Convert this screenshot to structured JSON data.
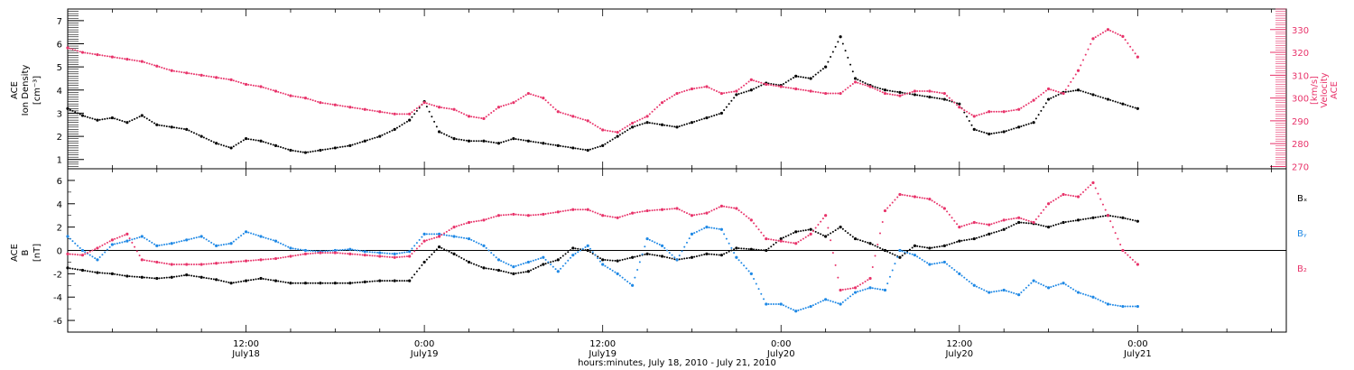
{
  "chart_data": [
    {
      "type": "scatter",
      "panel": "top",
      "ylabel_left": [
        "ACE",
        "Ion Density",
        "[cm⁻³]"
      ],
      "ylabel_right": [
        "ACE",
        "Velocity",
        "[km/s]"
      ],
      "ylim_left": [
        0.6,
        7.5
      ],
      "ylim_right": [
        269,
        339
      ],
      "yticks_left": [
        1,
        2,
        3,
        4,
        5,
        6,
        7
      ],
      "yticks_right": [
        270,
        280,
        290,
        300,
        310,
        320,
        330
      ],
      "x_range_hours": [
        0,
        82
      ],
      "colors": {
        "density": "#000000",
        "velocity": "#e8336a"
      },
      "series": [
        {
          "name": "Ion Density",
          "axis": "left",
          "color": "#000000",
          "x": [
            0,
            1,
            2,
            3,
            4,
            5,
            6,
            7,
            8,
            9,
            10,
            11,
            12,
            13,
            14,
            15,
            16,
            17,
            18,
            19,
            20,
            21,
            22,
            23,
            24,
            25,
            26,
            27,
            28,
            29,
            30,
            31,
            32,
            33,
            34,
            35,
            36,
            37,
            38,
            39,
            40,
            41,
            42,
            43,
            44,
            45,
            46,
            47,
            48,
            49,
            50,
            51,
            52,
            53,
            54,
            55,
            56,
            57,
            58,
            59,
            60,
            61,
            62,
            63,
            64,
            65,
            66,
            67,
            68,
            69,
            70,
            71,
            72
          ],
          "values": [
            3.2,
            2.9,
            2.7,
            2.8,
            2.6,
            2.9,
            2.5,
            2.4,
            2.3,
            2.0,
            1.7,
            1.5,
            1.9,
            1.8,
            1.6,
            1.4,
            1.3,
            1.4,
            1.5,
            1.6,
            1.8,
            2.0,
            2.3,
            2.7,
            3.5,
            2.2,
            1.9,
            1.8,
            1.8,
            1.7,
            1.9,
            1.8,
            1.7,
            1.6,
            1.5,
            1.4,
            1.6,
            2.0,
            2.4,
            2.6,
            2.5,
            2.4,
            2.6,
            2.8,
            3.0,
            3.8,
            4.0,
            4.3,
            4.2,
            4.6,
            4.5,
            5.0,
            6.3,
            4.5,
            4.2,
            4.0,
            3.9,
            3.8,
            3.7,
            3.6,
            3.4,
            2.3,
            2.1,
            2.2,
            2.4,
            2.6,
            3.6,
            3.9,
            4.0,
            3.8,
            3.6,
            3.4,
            3.2
          ]
        },
        {
          "name": "Velocity",
          "axis": "right",
          "color": "#e8336a",
          "x": [
            0,
            1,
            2,
            3,
            4,
            5,
            6,
            7,
            8,
            9,
            10,
            11,
            12,
            13,
            14,
            15,
            16,
            17,
            18,
            19,
            20,
            21,
            22,
            23,
            24,
            25,
            26,
            27,
            28,
            29,
            30,
            31,
            32,
            33,
            34,
            35,
            36,
            37,
            38,
            39,
            40,
            41,
            42,
            43,
            44,
            45,
            46,
            47,
            48,
            49,
            50,
            51,
            52,
            53,
            54,
            55,
            56,
            57,
            58,
            59,
            60,
            61,
            62,
            63,
            64,
            65,
            66,
            67,
            68,
            69,
            70,
            71,
            72
          ],
          "values": [
            322,
            320,
            319,
            318,
            317,
            316,
            314,
            312,
            311,
            310,
            309,
            308,
            306,
            305,
            303,
            301,
            300,
            298,
            297,
            296,
            295,
            294,
            293,
            293,
            298,
            296,
            295,
            292,
            291,
            296,
            298,
            302,
            300,
            294,
            292,
            290,
            286,
            285,
            289,
            292,
            298,
            302,
            304,
            305,
            302,
            303,
            308,
            306,
            305,
            304,
            303,
            302,
            302,
            307,
            305,
            302,
            301,
            303,
            303,
            302,
            296,
            292,
            294,
            294,
            295,
            299,
            304,
            302,
            312,
            326,
            330,
            327,
            318
          ]
        }
      ]
    },
    {
      "type": "scatter",
      "panel": "bottom",
      "ylabel_left": [
        "ACE",
        "B",
        "[nT]"
      ],
      "ylim": [
        -7,
        7
      ],
      "yticks": [
        -6,
        -4,
        -2,
        0,
        2,
        4,
        6
      ],
      "x_range_hours": [
        0,
        82
      ],
      "zero_line": true,
      "legend": [
        "Bₓ",
        "Bᵧ",
        "B₂"
      ],
      "colors": {
        "bx": "#000000",
        "by": "#1e88e5",
        "bz": "#e8336a"
      },
      "series": [
        {
          "name": "Bx",
          "color": "#000000",
          "x": [
            0,
            1,
            2,
            3,
            4,
            5,
            6,
            7,
            8,
            9,
            10,
            11,
            12,
            13,
            14,
            15,
            16,
            17,
            18,
            19,
            20,
            21,
            22,
            23,
            24,
            25,
            26,
            27,
            28,
            29,
            30,
            31,
            32,
            33,
            34,
            35,
            36,
            37,
            38,
            39,
            40,
            41,
            42,
            43,
            44,
            45,
            46,
            47,
            48,
            49,
            50,
            51,
            52,
            53,
            54,
            55,
            56,
            57,
            58,
            59,
            60,
            61,
            62,
            63,
            64,
            65,
            66,
            67,
            68,
            69,
            70,
            71,
            72
          ],
          "values": [
            -1.5,
            -1.7,
            -1.9,
            -2.0,
            -2.2,
            -2.3,
            -2.4,
            -2.3,
            -2.1,
            -2.3,
            -2.5,
            -2.8,
            -2.6,
            -2.4,
            -2.6,
            -2.8,
            -2.8,
            -2.8,
            -2.8,
            -2.8,
            -2.7,
            -2.6,
            -2.6,
            -2.6,
            -1.0,
            0.3,
            -0.3,
            -1.0,
            -1.5,
            -1.7,
            -2.0,
            -1.8,
            -1.2,
            -0.8,
            0.2,
            0.0,
            -0.8,
            -0.9,
            -0.6,
            -0.3,
            -0.5,
            -0.8,
            -0.6,
            -0.3,
            -0.4,
            0.2,
            0.1,
            0.0,
            1.0,
            1.6,
            1.8,
            1.2,
            2.0,
            1.0,
            0.6,
            0.0,
            -0.6,
            0.4,
            0.2,
            0.4,
            0.8,
            1.0,
            1.4,
            1.8,
            2.4,
            2.3,
            2.0,
            2.4,
            2.6,
            2.8,
            3.0,
            2.8,
            2.5
          ]
        },
        {
          "name": "By",
          "color": "#1e88e5",
          "x": [
            0,
            1,
            2,
            3,
            4,
            5,
            6,
            7,
            8,
            9,
            10,
            11,
            12,
            13,
            14,
            15,
            16,
            17,
            18,
            19,
            20,
            21,
            22,
            23,
            24,
            25,
            26,
            27,
            28,
            29,
            30,
            31,
            32,
            33,
            34,
            35,
            36,
            37,
            38,
            39,
            40,
            41,
            42,
            43,
            44,
            45,
            46,
            47,
            48,
            49,
            50,
            51,
            52,
            53,
            54,
            55,
            56,
            57,
            58,
            59,
            60,
            61,
            62,
            63,
            64,
            65,
            66,
            67,
            68,
            69,
            70,
            71,
            72
          ],
          "values": [
            1.2,
            0.0,
            -0.8,
            0.5,
            0.8,
            1.2,
            0.4,
            0.6,
            0.9,
            1.2,
            0.4,
            0.6,
            1.6,
            1.2,
            0.8,
            0.2,
            0.0,
            -0.1,
            0.0,
            0.1,
            -0.1,
            -0.2,
            -0.3,
            -0.1,
            1.4,
            1.4,
            1.2,
            1.0,
            0.4,
            -0.8,
            -1.4,
            -1.0,
            -0.6,
            -1.8,
            -0.4,
            0.4,
            -1.2,
            -2.0,
            -3.0,
            1.0,
            0.4,
            -0.8,
            1.4,
            2.0,
            1.8,
            -0.6,
            -2.0,
            -4.6,
            -4.6,
            -5.2,
            -4.8,
            -4.2,
            -4.6,
            -3.6,
            -3.2,
            -3.4,
            0.0,
            -0.4,
            -1.2,
            -1.0,
            -2.0,
            -3.0,
            -3.6,
            -3.4,
            -3.8,
            -2.6,
            -3.2,
            -2.8,
            -3.6,
            -4.0,
            -4.6,
            -4.8,
            -4.8
          ]
        },
        {
          "name": "Bz",
          "color": "#e8336a",
          "x": [
            0,
            1,
            2,
            3,
            4,
            5,
            6,
            7,
            8,
            9,
            10,
            11,
            12,
            13,
            14,
            15,
            16,
            17,
            18,
            19,
            20,
            21,
            22,
            23,
            24,
            25,
            26,
            27,
            28,
            29,
            30,
            31,
            32,
            33,
            34,
            35,
            36,
            37,
            38,
            39,
            40,
            41,
            42,
            43,
            44,
            45,
            46,
            47,
            48,
            49,
            50,
            51,
            52,
            53,
            54,
            55,
            56,
            57,
            58,
            59,
            60,
            61,
            62,
            63,
            64,
            65,
            66,
            67,
            68,
            69,
            70,
            71,
            72
          ],
          "values": [
            -0.3,
            -0.4,
            0.2,
            0.9,
            1.4,
            -0.8,
            -1.0,
            -1.2,
            -1.2,
            -1.2,
            -1.1,
            -1.0,
            -0.9,
            -0.8,
            -0.7,
            -0.5,
            -0.3,
            -0.2,
            -0.2,
            -0.3,
            -0.4,
            -0.5,
            -0.6,
            -0.5,
            0.8,
            1.2,
            2.0,
            2.4,
            2.6,
            3.0,
            3.1,
            3.0,
            3.1,
            3.3,
            3.5,
            3.5,
            3.0,
            2.8,
            3.2,
            3.4,
            3.5,
            3.6,
            3.0,
            3.2,
            3.8,
            3.6,
            2.6,
            1.0,
            0.8,
            0.6,
            1.4,
            3.0,
            -3.4,
            -3.2,
            -2.4,
            3.4,
            4.8,
            4.6,
            4.4,
            3.6,
            2.0,
            2.4,
            2.2,
            2.6,
            2.8,
            2.4,
            4.0,
            4.8,
            4.6,
            5.8,
            3.0,
            0.0,
            -1.2
          ]
        }
      ]
    }
  ],
  "x_axis": {
    "tick_labels": [
      {
        "hour": 12,
        "time": "12:00",
        "date": "July18"
      },
      {
        "hour": 24,
        "time": "0:00",
        "date": "July19"
      },
      {
        "hour": 36,
        "time": "12:00",
        "date": "July19"
      },
      {
        "hour": 48,
        "time": "0:00",
        "date": "July20"
      },
      {
        "hour": 60,
        "time": "12:00",
        "date": "July20"
      },
      {
        "hour": 72,
        "time": "0:00",
        "date": "July21"
      }
    ],
    "xlabel": "hours:minutes, July 18, 2010 - July 21, 2010"
  }
}
